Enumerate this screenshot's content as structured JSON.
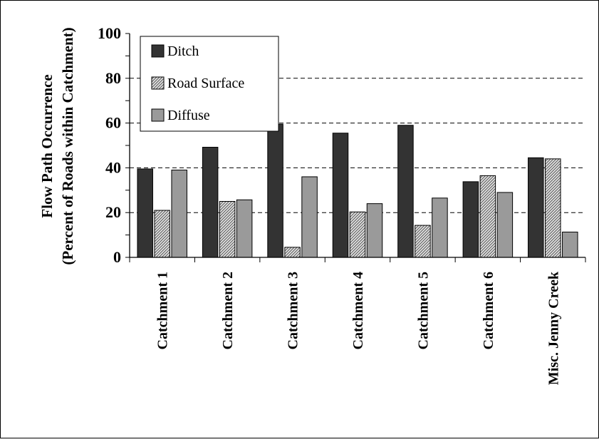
{
  "chart_data": {
    "type": "bar",
    "title": "",
    "ylabel": "Flow Path Occurrence",
    "ylabel_line2": "(Percent of Roads within Catchment)",
    "xlabel": "",
    "categories": [
      "Catchment 1",
      "Catchment 2",
      "Catchment 3",
      "Catchment 4",
      "Catchment 5",
      "Catchment 6",
      "Misc. Jenny Creek"
    ],
    "series": [
      {
        "name": "Ditch",
        "values": [
          39.5,
          49.2,
          59.5,
          55.5,
          59.0,
          33.8,
          44.5
        ]
      },
      {
        "name": "Road Surface",
        "values": [
          21.0,
          25.0,
          4.5,
          20.3,
          14.3,
          36.5,
          44.0
        ]
      },
      {
        "name": "Diffuse",
        "values": [
          39.0,
          25.7,
          36.0,
          24.0,
          26.5,
          29.0,
          11.3
        ]
      }
    ],
    "ylim": [
      0,
      100
    ],
    "yticks": [
      "0",
      "20",
      "40",
      "60",
      "80",
      "100"
    ],
    "grid": "horizontal dashed",
    "legend_position": "top-left",
    "colors": {
      "Ditch": "#333333",
      "Road Surface": "#c9c9c9",
      "Diffuse": "#9a9a9a"
    }
  }
}
